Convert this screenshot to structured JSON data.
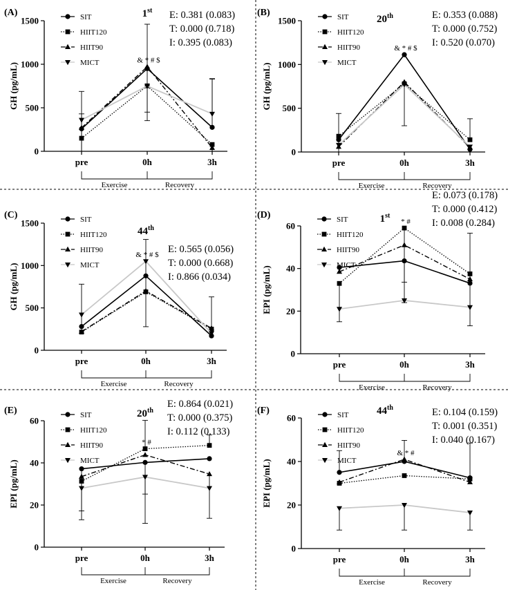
{
  "legend_labels": [
    "SIT",
    "HIIT120",
    "HIIT90",
    "MICT"
  ],
  "phase_labels": [
    "Exercise",
    "Recovery"
  ],
  "chart_data": [
    {
      "type": "line",
      "panel": "(A)",
      "session": "1",
      "session_sup": "st",
      "ylabel": "GH (pg/mL)",
      "ylim": [
        0,
        1500
      ],
      "yticks": [
        0,
        500,
        1000,
        1500
      ],
      "categories": [
        "pre",
        "0h",
        "3h"
      ],
      "stats": [
        "E: 0.381 (0.083)",
        "T: 0.000 (0.718)",
        "I: 0.395 (0.083)"
      ],
      "sig_text": "& * # $",
      "series": [
        {
          "name": "SIT",
          "values": [
            258,
            950,
            275
          ],
          "err_up": [
            430,
            510,
            560
          ],
          "err_down": [
            260,
            500,
            0
          ]
        },
        {
          "name": "HIIT120",
          "values": [
            150,
            752,
            78
          ],
          "err_up": [
            280,
            0,
            0
          ],
          "err_down": [
            150,
            400,
            78
          ]
        },
        {
          "name": "HIIT90",
          "values": [
            270,
            972,
            40
          ],
          "err_up": [
            0,
            0,
            0
          ],
          "err_down": [
            270,
            0,
            40
          ]
        },
        {
          "name": "MICT",
          "values": [
            360,
            750,
            430
          ],
          "err_up": [
            0,
            0,
            400
          ],
          "err_down": [
            0,
            0,
            0
          ]
        }
      ]
    },
    {
      "type": "line",
      "panel": "(B)",
      "session": "20",
      "session_sup": "th",
      "ylabel": "GH (pg/mL)",
      "ylim": [
        0,
        1500
      ],
      "yticks": [
        0,
        500,
        1000,
        1500
      ],
      "categories": [
        "pre",
        "0h",
        "3h"
      ],
      "stats": [
        "E: 0.353 (0.088)",
        "T: 0.000 (0.752)",
        "I: 0.520 (0.070)"
      ],
      "sig_text": "& * # $",
      "series": [
        {
          "name": "SIT",
          "values": [
            140,
            1112,
            30
          ],
          "err_up": [
            300,
            0,
            0
          ],
          "err_down": [
            140,
            0,
            30
          ]
        },
        {
          "name": "HIIT120",
          "values": [
            180,
            780,
            140
          ],
          "err_up": [
            0,
            0,
            240
          ],
          "err_down": [
            0,
            480,
            0
          ]
        },
        {
          "name": "HIIT90",
          "values": [
            60,
            800,
            50
          ],
          "err_up": [
            0,
            0,
            0
          ],
          "err_down": [
            0,
            0,
            0
          ]
        },
        {
          "name": "MICT",
          "values": [
            80,
            770,
            60
          ],
          "err_up": [
            0,
            0,
            0
          ],
          "err_down": [
            0,
            0,
            0
          ]
        }
      ]
    },
    {
      "type": "line",
      "panel": "(C)",
      "session": "44",
      "session_sup": "th",
      "ylabel": "GH (pg/mL)",
      "ylim": [
        0,
        1500
      ],
      "yticks": [
        0,
        500,
        1000,
        1500
      ],
      "categories": [
        "pre",
        "0h",
        "3h"
      ],
      "stats": [
        "E: 0.565 (0.056)",
        "T: 0.000 (0.668)",
        "I: 0.866 (0.034)"
      ],
      "sig_text": "& * # $",
      "series": [
        {
          "name": "SIT",
          "values": [
            280,
            878,
            170
          ],
          "err_up": [
            500,
            430,
            460
          ],
          "err_down": [
            0,
            600,
            0
          ]
        },
        {
          "name": "HIIT120",
          "values": [
            215,
            690,
            250
          ],
          "err_up": [
            0,
            0,
            0
          ],
          "err_down": [
            0,
            0,
            0
          ]
        },
        {
          "name": "HIIT90",
          "values": [
            220,
            700,
            260
          ],
          "err_up": [
            0,
            0,
            0
          ],
          "err_down": [
            0,
            0,
            0
          ]
        },
        {
          "name": "MICT",
          "values": [
            420,
            1050,
            200
          ],
          "err_up": [
            0,
            0,
            0
          ],
          "err_down": [
            0,
            0,
            0
          ]
        }
      ]
    },
    {
      "type": "line",
      "panel": "(D)",
      "session": "1",
      "session_sup": "st",
      "ylabel": "EPI (pg/mL)",
      "ylim": [
        0,
        60
      ],
      "yticks": [
        0,
        20,
        40,
        60
      ],
      "categories": [
        "pre",
        "0h",
        "3h"
      ],
      "stats": [
        "E: 0.073 (0.178)",
        "T: 0.000 (0.412)",
        "I: 0.008 (0.284)"
      ],
      "sig_text": "* #",
      "series": [
        {
          "name": "SIT",
          "values": [
            40.5,
            43.6,
            33.1
          ],
          "err_up": [
            0,
            0,
            23.5
          ],
          "err_down": [
            0,
            10,
            20
          ]
        },
        {
          "name": "HIIT120",
          "values": [
            33,
            59,
            37.5
          ],
          "err_up": [
            0,
            0,
            0
          ],
          "err_down": [
            18,
            35,
            0
          ]
        },
        {
          "name": "HIIT90",
          "values": [
            38.5,
            51,
            35
          ],
          "err_up": [
            0,
            0,
            0
          ],
          "err_down": [
            0,
            0,
            0
          ]
        },
        {
          "name": "MICT",
          "values": [
            21,
            25,
            21.8
          ],
          "err_up": [
            0,
            0,
            0
          ],
          "err_down": [
            0,
            0,
            0
          ]
        }
      ]
    },
    {
      "type": "line",
      "panel": "(E)",
      "session": "20",
      "session_sup": "th",
      "ylabel": "EPI (pg/mL)",
      "ylim": [
        0,
        60
      ],
      "yticks": [
        0,
        20,
        40,
        60
      ],
      "categories": [
        "pre",
        "0h",
        "3h"
      ],
      "stats": [
        "E: 0.864 (0.021)",
        "T: 0.000 (0.375)",
        "I: 0.112 (0.133)"
      ],
      "sig_text": "* #",
      "series": [
        {
          "name": "SIT",
          "values": [
            37.2,
            40.2,
            42
          ],
          "err_up": [
            0,
            0,
            0
          ],
          "err_down": [
            20,
            15,
            0
          ]
        },
        {
          "name": "HIIT120",
          "values": [
            31.3,
            46.7,
            48.3
          ],
          "err_up": [
            0,
            13.5,
            5
          ],
          "err_down": [
            18.3,
            0,
            0
          ]
        },
        {
          "name": "HIIT90",
          "values": [
            33.5,
            43.8,
            34.7
          ],
          "err_up": [
            0,
            0,
            0
          ],
          "err_down": [
            0,
            0,
            21
          ]
        },
        {
          "name": "MICT",
          "values": [
            28,
            33.3,
            28
          ],
          "err_up": [
            0,
            0,
            0
          ],
          "err_down": [
            0,
            22,
            0
          ]
        }
      ]
    },
    {
      "type": "line",
      "panel": "(F)",
      "session": "44",
      "session_sup": "th",
      "ylabel": "EPI (pg/mL)",
      "ylim": [
        0,
        60
      ],
      "yticks": [
        0,
        20,
        40,
        60
      ],
      "categories": [
        "pre",
        "0h",
        "3h"
      ],
      "stats": [
        "E: 0.104 (0.159)",
        "T: 0.001 (0.351)",
        "I: 0.040 (0.167)"
      ],
      "sig_text": "& * #",
      "series": [
        {
          "name": "SIT",
          "values": [
            35,
            40,
            32.5
          ],
          "err_up": [
            10,
            9.7,
            16
          ],
          "err_down": [
            0,
            0,
            0
          ]
        },
        {
          "name": "HIIT120",
          "values": [
            30,
            33.5,
            32
          ],
          "err_up": [
            0,
            0,
            0
          ],
          "err_down": [
            0,
            0,
            0
          ]
        },
        {
          "name": "HIIT90",
          "values": [
            30.5,
            41,
            30.5
          ],
          "err_up": [
            0,
            0,
            0
          ],
          "err_down": [
            0,
            0,
            0
          ]
        },
        {
          "name": "MICT",
          "values": [
            18.5,
            20,
            16.5
          ],
          "err_up": [
            0,
            0,
            0
          ],
          "err_down": [
            10,
            11.5,
            8
          ]
        }
      ]
    }
  ]
}
